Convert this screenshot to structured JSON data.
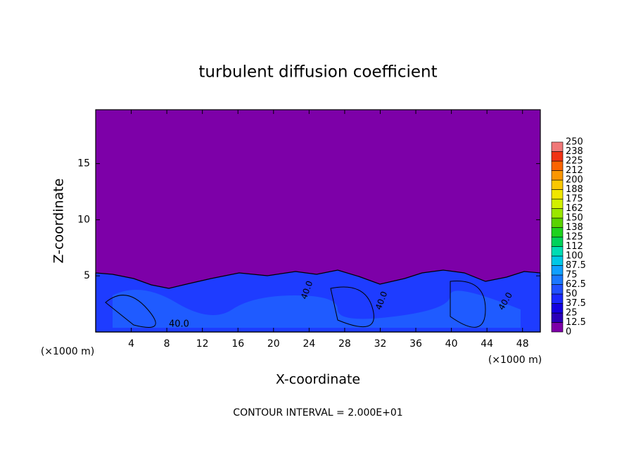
{
  "chart_data": {
    "type": "contour",
    "title": "turbulent diffusion coefficient",
    "x_label": "X-coordinate",
    "y_label": "Z-coordinate",
    "x_unit_left": "(×1000 m)",
    "x_unit_right": "(×1000 m)",
    "footnote": "CONTOUR INTERVAL = 2.000E+01",
    "contour_labels": [
      "40.0",
      "40.0",
      "40.0",
      "40.0"
    ],
    "xlim": [
      0,
      50
    ],
    "xticks": [
      4,
      8,
      12,
      16,
      20,
      24,
      28,
      32,
      36,
      40,
      44,
      48
    ],
    "ylim": [
      0,
      19.8
    ],
    "yticks": [
      5,
      10,
      15
    ],
    "levels": [
      0,
      12.5,
      25,
      37.5,
      50,
      62.5,
      75,
      87.5,
      100,
      112,
      125,
      138,
      150,
      162,
      175,
      188,
      200,
      212,
      225,
      238,
      250
    ],
    "level_colors": [
      "#7d00a8",
      "#2a00b8",
      "#1400e0",
      "#1a28ff",
      "#2050ff",
      "#1a78ff",
      "#10a0ff",
      "#00c8e6",
      "#00dcb4",
      "#00d25a",
      "#1ed21e",
      "#5ad200",
      "#9be600",
      "#d2f000",
      "#f0e600",
      "#fac800",
      "#fa9600",
      "#fa6400",
      "#f03214",
      "#f07878"
    ]
  }
}
